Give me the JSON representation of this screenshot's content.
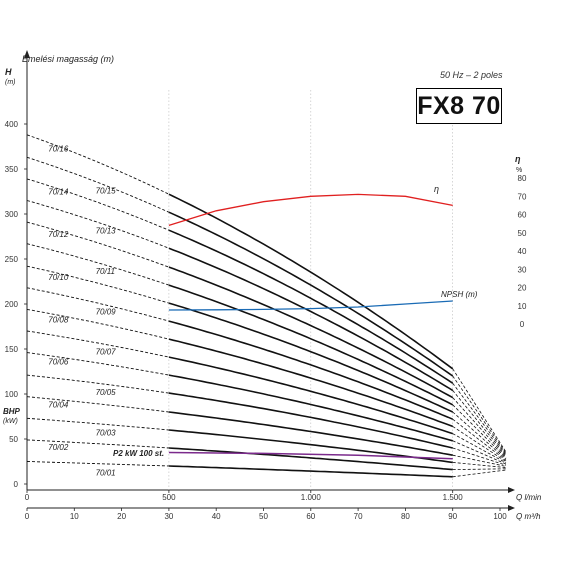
{
  "header": {
    "model": "FX8 70",
    "frequency": "50 Hz – 2 poles"
  },
  "chart_data": {
    "type": "line",
    "y_axis": {
      "title": "Emelési magasság (m)",
      "symbol": "H",
      "unit": "(m)",
      "min": 0,
      "max": 450,
      "ticks": [
        0,
        50,
        100,
        150,
        200,
        250,
        300,
        350,
        400
      ]
    },
    "bhp_axis": {
      "symbol": "BHP",
      "unit": "(kW)"
    },
    "eff_axis": {
      "symbol": "η",
      "unit": "%",
      "ticks": [
        0,
        10,
        20,
        30,
        40,
        50,
        60,
        70,
        80
      ]
    },
    "x_axis_flow_lmin": {
      "label": "Q l/min",
      "min": 0,
      "max": 1666.7,
      "ticks": [
        0,
        500,
        1000,
        1500
      ],
      "tick_labels": [
        "0",
        "500",
        "1.000",
        "1.500"
      ]
    },
    "x_axis_flow_m3h": {
      "label": "Q m³/h",
      "min": 0,
      "max": 100,
      "ticks": [
        0,
        10,
        20,
        30,
        40,
        50,
        60,
        70,
        80,
        90,
        100
      ]
    },
    "grid_lines_m3h": [
      30,
      60,
      90
    ],
    "operating_range_m3h": [
      30,
      90
    ],
    "head_curves": [
      {
        "name": "70/01",
        "head_at_q0": 25,
        "head_at_q30": 20,
        "head_at_q90": 8
      },
      {
        "name": "70/02",
        "head_at_q0": 49,
        "head_at_q30": 40,
        "head_at_q90": 16
      },
      {
        "name": "70/03",
        "head_at_q0": 73,
        "head_at_q30": 60,
        "head_at_q90": 24
      },
      {
        "name": "70/04",
        "head_at_q0": 97,
        "head_at_q30": 80,
        "head_at_q90": 32
      },
      {
        "name": "70/05",
        "head_at_q0": 121,
        "head_at_q30": 101,
        "head_at_q90": 40
      },
      {
        "name": "70/06",
        "head_at_q0": 146,
        "head_at_q30": 121,
        "head_at_q90": 48
      },
      {
        "name": "70/07",
        "head_at_q0": 170,
        "head_at_q30": 141,
        "head_at_q90": 56
      },
      {
        "name": "70/08",
        "head_at_q0": 194,
        "head_at_q30": 161,
        "head_at_q90": 64
      },
      {
        "name": "70/09",
        "head_at_q0": 218,
        "head_at_q30": 181,
        "head_at_q90": 72
      },
      {
        "name": "70/10",
        "head_at_q0": 242,
        "head_at_q30": 201,
        "head_at_q90": 80
      },
      {
        "name": "70/11",
        "head_at_q0": 267,
        "head_at_q30": 221,
        "head_at_q90": 88
      },
      {
        "name": "70/12",
        "head_at_q0": 291,
        "head_at_q30": 241,
        "head_at_q90": 96
      },
      {
        "name": "70/13",
        "head_at_q0": 315,
        "head_at_q30": 262,
        "head_at_q90": 104
      },
      {
        "name": "70/14",
        "head_at_q0": 339,
        "head_at_q30": 282,
        "head_at_q90": 112
      },
      {
        "name": "70/15",
        "head_at_q0": 363,
        "head_at_q30": 302,
        "head_at_q90": 120
      },
      {
        "name": "70/16",
        "head_at_q0": 388,
        "head_at_q30": 322,
        "head_at_q90": 128
      }
    ],
    "efficiency_curve": {
      "name": "η",
      "color": "#e02020",
      "q_m3h": [
        30,
        40,
        50,
        60,
        70,
        80,
        90
      ],
      "eta_pct": [
        54,
        62,
        67,
        70,
        71,
        70,
        65
      ]
    },
    "npsh_curve": {
      "name": "NPSH (m)",
      "color": "#1a6bb5",
      "q_m3h": [
        30,
        40,
        50,
        60,
        70,
        80,
        90
      ],
      "npsh_m": [
        1.5,
        1.6,
        1.8,
        2.2,
        3.0,
        4.5,
        6.0
      ]
    },
    "power_curve": {
      "name": "P2 kW 100 st.",
      "color": "#7b2a8c",
      "q_m3h": [
        30,
        50,
        70,
        90
      ],
      "bhp_kw_scale_value": [
        35,
        34,
        32,
        28
      ]
    }
  }
}
